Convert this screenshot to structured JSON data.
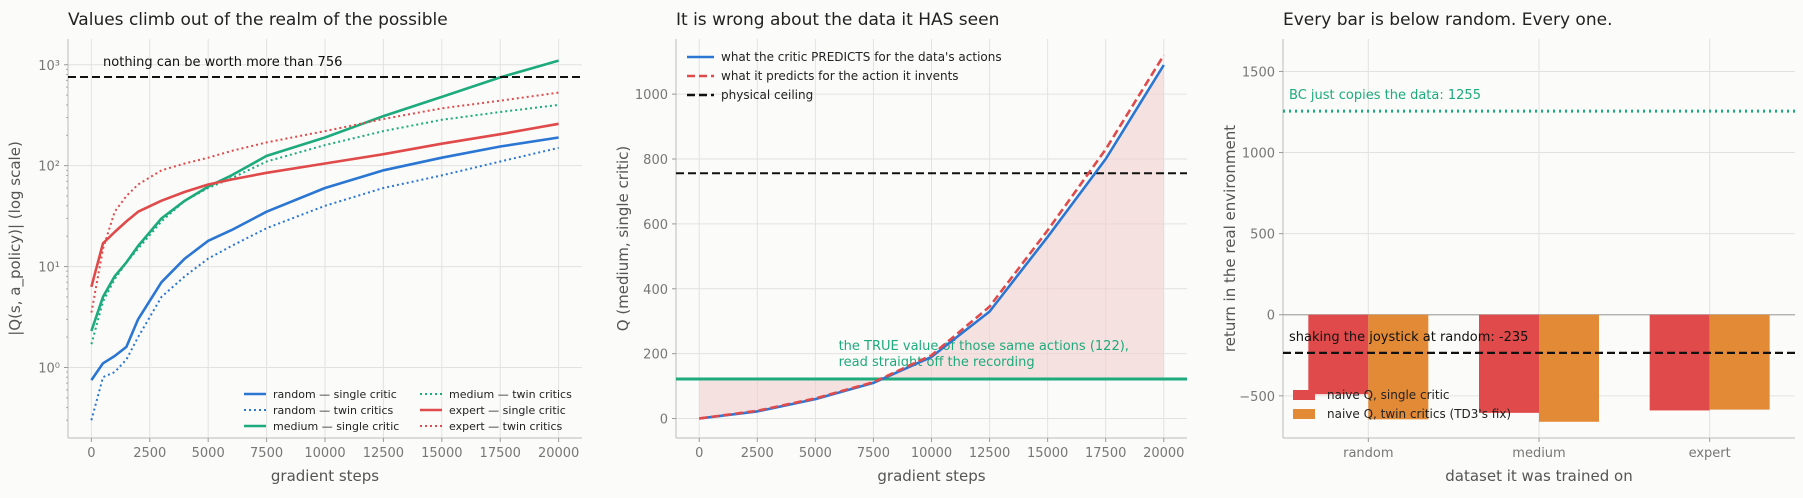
{
  "colors": {
    "blue": "#2a76d2",
    "green": "#1daa7c",
    "red": "#e04a4a",
    "orange": "#e38a37",
    "black": "#111111",
    "fill_red": "#f3cccc"
  },
  "chart_data": [
    {
      "type": "line",
      "title": "Values climb out of the realm of the possible",
      "xlabel": "gradient steps",
      "ylabel": "|Q(s, a_policy)|  (log scale)",
      "yscale": "log",
      "xlim": [
        -1000,
        21000
      ],
      "ylim": [
        0.2,
        1800
      ],
      "xticks": [
        0,
        2500,
        5000,
        7500,
        10000,
        12500,
        15000,
        17500,
        20000
      ],
      "yticks": [
        1,
        10,
        100,
        1000
      ],
      "ytick_labels": [
        "10⁰",
        "10¹",
        "10²",
        "10³"
      ],
      "legend_position": "lower-right",
      "hline": {
        "y": 756,
        "style": "dashed",
        "color": "black"
      },
      "annotation": "nothing can be worth more than 756",
      "series": [
        {
          "name": "random — single critic",
          "style": "solid",
          "color": "blue",
          "x": [
            0,
            500,
            1000,
            1500,
            2000,
            3000,
            4000,
            5000,
            6000,
            7500,
            10000,
            12500,
            15000,
            17500,
            20000
          ],
          "y": [
            0.75,
            1.1,
            1.3,
            1.6,
            3,
            7,
            12,
            18,
            23,
            35,
            60,
            90,
            120,
            155,
            190
          ]
        },
        {
          "name": "random — twin critics",
          "style": "dotted",
          "color": "blue",
          "x": [
            0,
            500,
            1000,
            1500,
            2000,
            3000,
            4000,
            5000,
            6000,
            7500,
            10000,
            12500,
            15000,
            17500,
            20000
          ],
          "y": [
            0.3,
            0.8,
            0.9,
            1.2,
            2,
            5,
            8,
            12,
            16,
            24,
            40,
            60,
            80,
            110,
            150
          ]
        },
        {
          "name": "medium — single critic",
          "style": "solid",
          "color": "green",
          "x": [
            0,
            500,
            1000,
            1500,
            2000,
            3000,
            4000,
            5000,
            6000,
            7500,
            10000,
            12500,
            15000,
            17500,
            20000
          ],
          "y": [
            2.3,
            5,
            8,
            11,
            16,
            30,
            45,
            62,
            80,
            125,
            190,
            310,
            480,
            750,
            1100
          ]
        },
        {
          "name": "medium — twin critics",
          "style": "dotted",
          "color": "green",
          "x": [
            0,
            500,
            1000,
            1500,
            2000,
            3000,
            4000,
            5000,
            6000,
            7500,
            10000,
            12500,
            15000,
            17500,
            20000
          ],
          "y": [
            1.7,
            4.5,
            7.5,
            11,
            15,
            28,
            45,
            60,
            75,
            110,
            160,
            220,
            285,
            340,
            400
          ]
        },
        {
          "name": "expert — single critic",
          "style": "solid",
          "color": "red",
          "x": [
            0,
            500,
            1000,
            1500,
            2000,
            3000,
            4000,
            5000,
            6000,
            7500,
            10000,
            12500,
            15000,
            17500,
            20000
          ],
          "y": [
            6.3,
            17,
            22,
            28,
            35,
            45,
            55,
            65,
            73,
            85,
            105,
            130,
            165,
            205,
            260
          ]
        },
        {
          "name": "expert — twin critics",
          "style": "dotted",
          "color": "red",
          "x": [
            0,
            500,
            1000,
            1500,
            2000,
            3000,
            4000,
            5000,
            6000,
            7500,
            10000,
            12500,
            15000,
            17500,
            20000
          ],
          "y": [
            3.5,
            15,
            35,
            50,
            65,
            90,
            105,
            120,
            140,
            170,
            220,
            290,
            370,
            440,
            530
          ]
        }
      ]
    },
    {
      "type": "line",
      "title": "It is wrong about the data it HAS seen",
      "xlabel": "gradient steps",
      "ylabel": "Q  (medium, single critic)",
      "xlim": [
        -1000,
        21000
      ],
      "ylim": [
        -60,
        1170
      ],
      "xticks": [
        0,
        2500,
        5000,
        7500,
        10000,
        12500,
        15000,
        17500,
        20000
      ],
      "yticks": [
        0,
        200,
        400,
        600,
        800,
        1000
      ],
      "legend_position": "upper-left",
      "hline_ceiling": {
        "y": 756,
        "style": "dashed",
        "color": "black",
        "name": "physical ceiling"
      },
      "hline_true": {
        "y": 122,
        "style": "solid",
        "color": "green"
      },
      "annotation_true": [
        "the TRUE value of those same actions (122),",
        "read straight off the recording"
      ],
      "series": [
        {
          "name": "what the critic PREDICTS for the data's actions",
          "style": "solid",
          "color": "blue",
          "x": [
            0,
            2500,
            5000,
            7500,
            10000,
            12500,
            15000,
            17500,
            20000
          ],
          "y": [
            0,
            22,
            60,
            110,
            190,
            330,
            560,
            800,
            1090
          ]
        },
        {
          "name": "what it predicts for the action it invents",
          "style": "dashed",
          "color": "red",
          "x": [
            0,
            2500,
            5000,
            7500,
            10000,
            12500,
            15000,
            17500,
            20000
          ],
          "y": [
            0,
            24,
            62,
            112,
            195,
            345,
            580,
            830,
            1120
          ]
        },
        {
          "name": "physical ceiling",
          "style": "dashed",
          "color": "black",
          "x": [
            -1000,
            21000
          ],
          "y": [
            756,
            756
          ]
        }
      ]
    },
    {
      "type": "bar",
      "title": "Every bar is below random. Every one.",
      "xlabel": "dataset it was trained on",
      "ylabel": "return in the real environment",
      "categories": [
        "random",
        "medium",
        "expert"
      ],
      "ylim": [
        -760,
        1700
      ],
      "yticks": [
        -500,
        0,
        500,
        1000,
        1500
      ],
      "legend_position": "lower-left",
      "hline_bc": {
        "y": 1255,
        "style": "dotted",
        "color": "green"
      },
      "annotation_bc": "BC just copies the data: 1255",
      "hline_random": {
        "y": -235,
        "style": "dashed",
        "color": "black"
      },
      "annotation_random": "shaking the joystick at random: -235",
      "series": [
        {
          "name": "naive Q, single critic",
          "color": "red",
          "values": [
            -490,
            -605,
            -590
          ]
        },
        {
          "name": "naive Q, twin critics (TD3's fix)",
          "color": "orange",
          "values": [
            -645,
            -660,
            -585
          ]
        }
      ]
    }
  ]
}
